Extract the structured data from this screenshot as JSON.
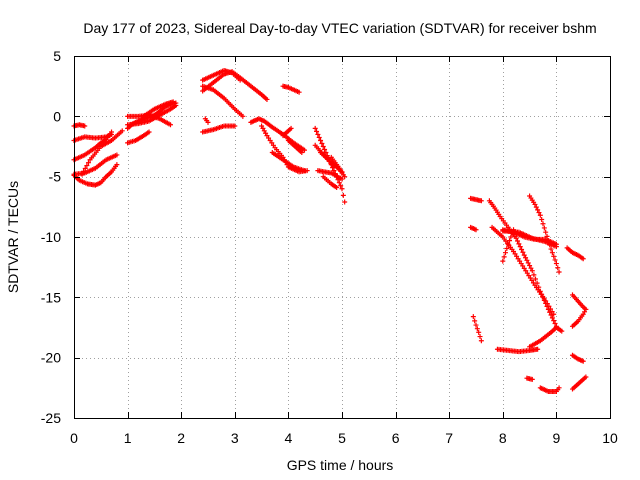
{
  "chart_data": {
    "type": "scatter",
    "title": "Day 177 of 2023, Sidereal Day-to-day VTEC variation (SDTVAR) for receiver bshm",
    "xlabel": "GPS time / hours",
    "ylabel": "SDTVAR / TECUs",
    "xlim": [
      0,
      10
    ],
    "ylim": [
      -25,
      5
    ],
    "xticks": [
      "0",
      "1",
      "2",
      "3",
      "4",
      "5",
      "6",
      "7",
      "8",
      "9",
      "10"
    ],
    "yticks": [
      "5",
      "0",
      "-5",
      "-10",
      "-15",
      "-20",
      "-25"
    ],
    "grid": true,
    "marker": "plus",
    "color": "#ff0000",
    "tracks": [
      [
        [
          0.0,
          -0.8
        ],
        [
          0.1,
          -0.7
        ],
        [
          0.2,
          -0.8
        ]
      ],
      [
        [
          0.0,
          -2.0
        ],
        [
          0.2,
          -1.7
        ],
        [
          0.4,
          -1.8
        ],
        [
          0.6,
          -1.7
        ],
        [
          0.7,
          -1.5
        ]
      ],
      [
        [
          0.0,
          -3.6
        ],
        [
          0.2,
          -3.2
        ],
        [
          0.4,
          -2.6
        ],
        [
          0.5,
          -2.2
        ],
        [
          0.6,
          -1.9
        ],
        [
          0.7,
          -1.3
        ]
      ],
      [
        [
          0.0,
          -4.8
        ],
        [
          0.2,
          -4.7
        ],
        [
          0.4,
          -4.3
        ],
        [
          0.6,
          -3.6
        ],
        [
          0.8,
          -3.2
        ]
      ],
      [
        [
          0.0,
          -4.9
        ],
        [
          0.1,
          -5.3
        ],
        [
          0.25,
          -5.6
        ],
        [
          0.4,
          -5.7
        ],
        [
          0.5,
          -5.5
        ],
        [
          0.6,
          -5.0
        ],
        [
          0.7,
          -4.6
        ],
        [
          0.8,
          -4.0
        ]
      ],
      [
        [
          0.15,
          -4.8
        ],
        [
          0.3,
          -3.6
        ],
        [
          0.5,
          -2.5
        ],
        [
          0.7,
          -2.0
        ],
        [
          0.9,
          -1.2
        ]
      ],
      [
        [
          1.0,
          -1.0
        ],
        [
          1.1,
          -0.6
        ],
        [
          1.2,
          -0.4
        ],
        [
          1.3,
          -0.2
        ],
        [
          1.4,
          -0.1
        ],
        [
          1.5,
          0.1
        ],
        [
          1.6,
          0.4
        ],
        [
          1.7,
          0.8
        ],
        [
          1.8,
          1.0
        ],
        [
          1.9,
          1.1
        ]
      ],
      [
        [
          1.0,
          0.0
        ],
        [
          1.2,
          0.0
        ],
        [
          1.4,
          0.1
        ],
        [
          1.6,
          -0.2
        ],
        [
          1.8,
          -0.7
        ]
      ],
      [
        [
          1.0,
          -0.7
        ],
        [
          1.2,
          -0.6
        ],
        [
          1.4,
          -0.4
        ],
        [
          1.6,
          0.1
        ],
        [
          1.8,
          0.6
        ],
        [
          1.9,
          0.9
        ]
      ],
      [
        [
          1.0,
          -2.2
        ],
        [
          1.15,
          -2.0
        ],
        [
          1.3,
          -1.6
        ],
        [
          1.4,
          -1.3
        ]
      ],
      [
        [
          1.3,
          0.0
        ],
        [
          1.5,
          0.6
        ],
        [
          1.7,
          1.0
        ],
        [
          1.85,
          1.2
        ]
      ],
      [
        [
          2.4,
          2.1
        ],
        [
          2.6,
          2.8
        ],
        [
          2.8,
          3.5
        ],
        [
          2.95,
          3.7
        ],
        [
          3.1,
          3.2
        ],
        [
          3.3,
          2.5
        ],
        [
          3.5,
          1.8
        ],
        [
          3.6,
          1.4
        ]
      ],
      [
        [
          2.4,
          3.0
        ],
        [
          2.6,
          3.4
        ],
        [
          2.8,
          3.8
        ],
        [
          2.95,
          3.6
        ],
        [
          3.1,
          3.0
        ]
      ],
      [
        [
          2.4,
          2.5
        ],
        [
          2.6,
          2.2
        ],
        [
          2.8,
          1.5
        ],
        [
          3.0,
          0.6
        ],
        [
          3.15,
          0.0
        ]
      ],
      [
        [
          2.4,
          -1.3
        ],
        [
          2.6,
          -1.1
        ],
        [
          2.8,
          -0.8
        ],
        [
          3.0,
          -0.8
        ]
      ],
      [
        [
          2.45,
          -0.2
        ],
        [
          2.5,
          -0.5
        ]
      ],
      [
        [
          3.3,
          -0.5
        ],
        [
          3.45,
          -0.2
        ],
        [
          3.55,
          -0.4
        ],
        [
          3.7,
          -0.9
        ],
        [
          3.9,
          -1.5
        ],
        [
          4.1,
          -2.2
        ],
        [
          4.3,
          -2.8
        ]
      ],
      [
        [
          3.5,
          -0.8
        ],
        [
          3.6,
          -1.6
        ],
        [
          3.75,
          -2.6
        ],
        [
          3.9,
          -3.4
        ],
        [
          4.0,
          -4.2
        ],
        [
          4.2,
          -4.6
        ],
        [
          4.35,
          -4.5
        ]
      ],
      [
        [
          3.7,
          -3.0
        ],
        [
          3.9,
          -3.6
        ],
        [
          4.1,
          -4.2
        ],
        [
          4.3,
          -4.5
        ]
      ],
      [
        [
          3.9,
          2.5
        ],
        [
          4.0,
          2.4
        ],
        [
          4.2,
          2.0
        ]
      ],
      [
        [
          3.9,
          -1.6
        ],
        [
          4.0,
          -1.2
        ],
        [
          4.05,
          -1.0
        ]
      ],
      [
        [
          4.0,
          -2.0
        ],
        [
          4.1,
          -2.4
        ],
        [
          4.25,
          -3.0
        ]
      ],
      [
        [
          4.5,
          -1.0
        ],
        [
          4.6,
          -2.0
        ],
        [
          4.7,
          -3.0
        ],
        [
          4.8,
          -4.0
        ],
        [
          4.9,
          -5.0
        ],
        [
          5.0,
          -6.0
        ],
        [
          5.05,
          -7.1
        ]
      ],
      [
        [
          4.5,
          -2.4
        ],
        [
          4.7,
          -3.4
        ],
        [
          4.85,
          -4.2
        ]
      ],
      [
        [
          4.6,
          -3.0
        ],
        [
          4.8,
          -3.8
        ],
        [
          4.95,
          -4.4
        ],
        [
          5.05,
          -5.0
        ]
      ],
      [
        [
          4.55,
          -4.5
        ],
        [
          4.8,
          -4.7
        ],
        [
          5.0,
          -5.2
        ]
      ],
      [
        [
          4.65,
          -5.0
        ],
        [
          4.8,
          -5.6
        ],
        [
          4.9,
          -5.9
        ]
      ],
      [
        [
          4.8,
          -3.4
        ],
        [
          4.9,
          -4.0
        ],
        [
          5.0,
          -4.6
        ]
      ],
      [
        [
          7.4,
          -6.8
        ],
        [
          7.5,
          -6.9
        ],
        [
          7.6,
          -7.0
        ]
      ],
      [
        [
          7.4,
          -9.2
        ],
        [
          7.5,
          -9.4
        ]
      ],
      [
        [
          7.45,
          -16.6
        ],
        [
          7.5,
          -17.3
        ],
        [
          7.55,
          -17.9
        ],
        [
          7.6,
          -18.6
        ]
      ],
      [
        [
          7.75,
          -7.0
        ],
        [
          7.85,
          -7.6
        ],
        [
          7.95,
          -8.3
        ],
        [
          8.1,
          -9.2
        ],
        [
          8.25,
          -10.1
        ],
        [
          8.4,
          -11.5
        ],
        [
          8.55,
          -12.8
        ],
        [
          8.7,
          -14.5
        ],
        [
          8.85,
          -16.0
        ],
        [
          9.0,
          -17.4
        ]
      ],
      [
        [
          7.8,
          -9.2
        ],
        [
          8.0,
          -10.0
        ],
        [
          8.2,
          -11.2
        ],
        [
          8.4,
          -12.6
        ],
        [
          8.6,
          -14.0
        ],
        [
          8.8,
          -15.3
        ],
        [
          8.95,
          -16.4
        ]
      ],
      [
        [
          8.0,
          -9.4
        ],
        [
          8.2,
          -9.6
        ],
        [
          8.4,
          -10.0
        ],
        [
          8.6,
          -10.2
        ],
        [
          8.8,
          -10.2
        ],
        [
          9.0,
          -10.6
        ]
      ],
      [
        [
          8.0,
          -9.5
        ],
        [
          8.3,
          -9.6
        ],
        [
          8.55,
          -10.1
        ],
        [
          8.8,
          -10.4
        ],
        [
          9.0,
          -10.8
        ]
      ],
      [
        [
          8.5,
          -6.6
        ],
        [
          8.6,
          -7.3
        ],
        [
          8.7,
          -8.2
        ],
        [
          8.8,
          -9.6
        ],
        [
          8.9,
          -11.0
        ],
        [
          9.0,
          -12.2
        ],
        [
          9.05,
          -12.9
        ]
      ],
      [
        [
          8.0,
          -12.0
        ],
        [
          8.1,
          -10.6
        ],
        [
          8.2,
          -9.4
        ]
      ],
      [
        [
          7.9,
          -19.3
        ],
        [
          8.1,
          -19.4
        ],
        [
          8.3,
          -19.5
        ],
        [
          8.5,
          -19.4
        ],
        [
          8.65,
          -19.3
        ]
      ],
      [
        [
          8.5,
          -19.1
        ],
        [
          8.7,
          -18.6
        ],
        [
          8.9,
          -17.9
        ],
        [
          9.0,
          -17.5
        ],
        [
          9.1,
          -17.8
        ]
      ],
      [
        [
          8.45,
          -21.7
        ],
        [
          8.55,
          -21.8
        ]
      ],
      [
        [
          8.7,
          -22.5
        ],
        [
          8.85,
          -22.8
        ],
        [
          9.0,
          -22.8
        ],
        [
          9.05,
          -22.5
        ]
      ],
      [
        [
          9.2,
          -10.9
        ],
        [
          9.3,
          -11.3
        ],
        [
          9.4,
          -11.5
        ],
        [
          9.5,
          -11.8
        ]
      ],
      [
        [
          9.3,
          -14.8
        ],
        [
          9.4,
          -15.3
        ],
        [
          9.5,
          -15.8
        ],
        [
          9.55,
          -16.0
        ],
        [
          9.5,
          -16.4
        ],
        [
          9.4,
          -17.0
        ],
        [
          9.3,
          -17.4
        ]
      ],
      [
        [
          9.3,
          -19.8
        ],
        [
          9.4,
          -20.1
        ],
        [
          9.5,
          -20.3
        ]
      ],
      [
        [
          9.3,
          -22.6
        ],
        [
          9.4,
          -22.2
        ],
        [
          9.5,
          -21.8
        ],
        [
          9.55,
          -21.6
        ]
      ]
    ]
  }
}
